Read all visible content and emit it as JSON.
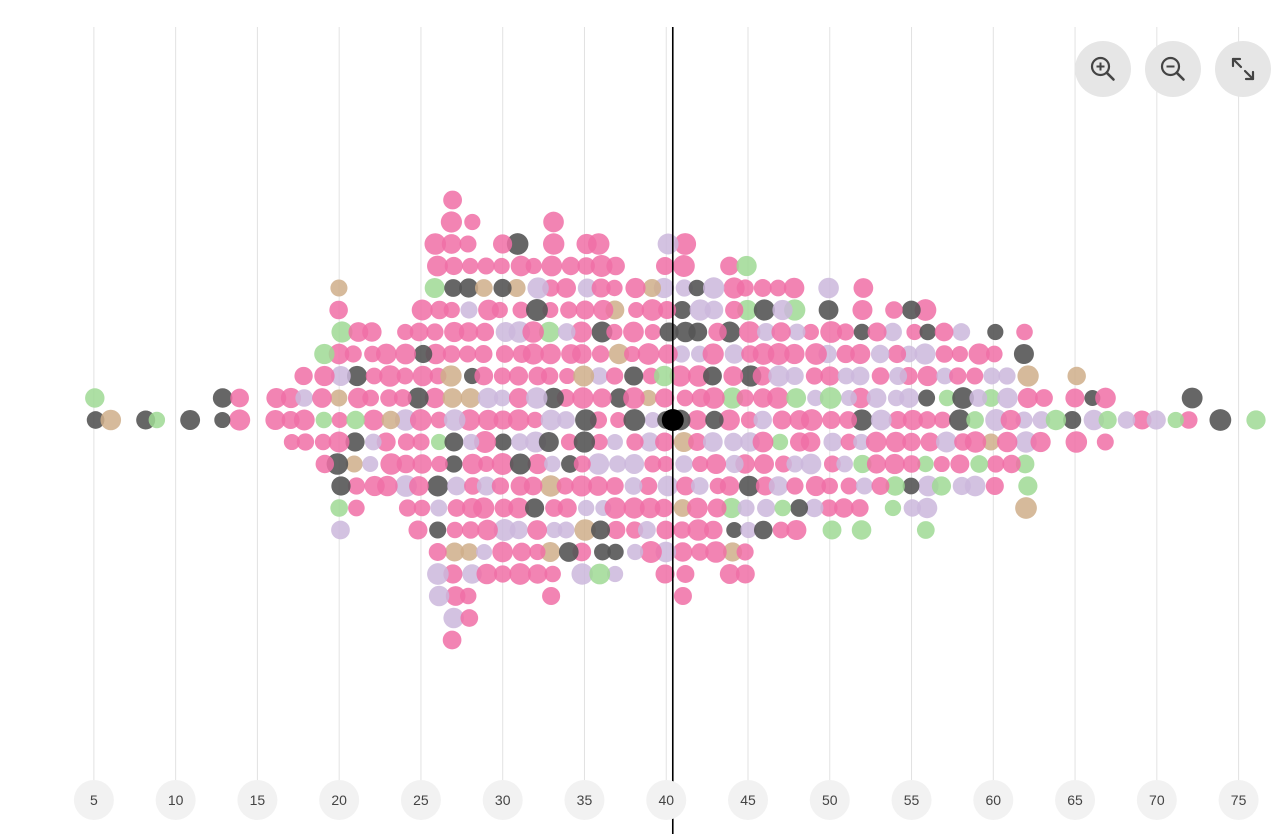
{
  "controls": {
    "zoom_in_icon": "zoom-in-icon",
    "zoom_out_icon": "zoom-out-icon",
    "fullscreen_icon": "expand-icon"
  },
  "colors": {
    "pink": "#f06fa6",
    "lavender": "#cbb7dc",
    "dark": "#555555",
    "green": "#9fd994",
    "tan": "#cfae8a",
    "highlight": "#000000",
    "gridline": "#e2e2e2",
    "tick_bg": "#f2f2f2"
  },
  "chart_data": {
    "type": "scatter",
    "title": "",
    "xlabel": "",
    "ylabel": "",
    "x_ticks": [
      5,
      10,
      15,
      20,
      25,
      30,
      35,
      40,
      45,
      50,
      55,
      60,
      65,
      70,
      75
    ],
    "xlim": [
      2.5,
      79
    ],
    "grid": true,
    "reference_line_x": 40.4,
    "highlighted_point": {
      "x": 40.4
    },
    "series": [
      {
        "color": "pink",
        "counts": [
          [
            14,
            2
          ],
          [
            16,
            2
          ],
          [
            17,
            3
          ],
          [
            18,
            3
          ],
          [
            19,
            4
          ],
          [
            20,
            4
          ],
          [
            21,
            5
          ],
          [
            22,
            6
          ],
          [
            23,
            6
          ],
          [
            24,
            7
          ],
          [
            25,
            9
          ],
          [
            26,
            10
          ],
          [
            27,
            12
          ],
          [
            28,
            12
          ],
          [
            29,
            11
          ],
          [
            30,
            11
          ],
          [
            31,
            10
          ],
          [
            32,
            10
          ],
          [
            33,
            10
          ],
          [
            34,
            9
          ],
          [
            35,
            9
          ],
          [
            36,
            9
          ],
          [
            37,
            8
          ],
          [
            38,
            8
          ],
          [
            39,
            8
          ],
          [
            40,
            9
          ],
          [
            41,
            9
          ],
          [
            42,
            8
          ],
          [
            43,
            8
          ],
          [
            44,
            7
          ],
          [
            45,
            8
          ],
          [
            46,
            7
          ],
          [
            47,
            7
          ],
          [
            48,
            6
          ],
          [
            49,
            6
          ],
          [
            50,
            6
          ],
          [
            51,
            6
          ],
          [
            52,
            5
          ],
          [
            53,
            5
          ],
          [
            54,
            5
          ],
          [
            55,
            5
          ],
          [
            56,
            4
          ],
          [
            57,
            4
          ],
          [
            58,
            4
          ],
          [
            59,
            3
          ],
          [
            60,
            3
          ],
          [
            61,
            3
          ],
          [
            62,
            2
          ],
          [
            63,
            2
          ],
          [
            65,
            2
          ],
          [
            67,
            2
          ],
          [
            69,
            1
          ],
          [
            72,
            1
          ]
        ]
      },
      {
        "color": "lavender",
        "counts": [
          [
            18,
            1
          ],
          [
            20,
            2
          ],
          [
            22,
            2
          ],
          [
            24,
            2
          ],
          [
            26,
            3
          ],
          [
            27,
            3
          ],
          [
            28,
            3
          ],
          [
            29,
            3
          ],
          [
            30,
            3
          ],
          [
            31,
            3
          ],
          [
            32,
            3
          ],
          [
            33,
            3
          ],
          [
            34,
            3
          ],
          [
            35,
            3
          ],
          [
            36,
            3
          ],
          [
            37,
            3
          ],
          [
            38,
            3
          ],
          [
            39,
            3
          ],
          [
            40,
            4
          ],
          [
            41,
            3
          ],
          [
            42,
            3
          ],
          [
            43,
            3
          ],
          [
            44,
            3
          ],
          [
            45,
            3
          ],
          [
            46,
            3
          ],
          [
            47,
            3
          ],
          [
            48,
            3
          ],
          [
            49,
            3
          ],
          [
            50,
            3
          ],
          [
            51,
            3
          ],
          [
            52,
            3
          ],
          [
            53,
            3
          ],
          [
            54,
            3
          ],
          [
            55,
            3
          ],
          [
            56,
            3
          ],
          [
            57,
            2
          ],
          [
            58,
            2
          ],
          [
            59,
            2
          ],
          [
            60,
            2
          ],
          [
            61,
            2
          ],
          [
            62,
            2
          ],
          [
            63,
            1
          ],
          [
            66,
            1
          ],
          [
            68,
            1
          ],
          [
            70,
            1
          ]
        ]
      },
      {
        "color": "dark",
        "counts": [
          [
            5,
            1
          ],
          [
            8,
            1
          ],
          [
            11,
            1
          ],
          [
            13,
            2
          ],
          [
            20,
            2
          ],
          [
            21,
            2
          ],
          [
            25,
            2
          ],
          [
            26,
            2
          ],
          [
            27,
            3
          ],
          [
            28,
            2
          ],
          [
            30,
            2
          ],
          [
            31,
            2
          ],
          [
            32,
            2
          ],
          [
            33,
            2
          ],
          [
            34,
            2
          ],
          [
            35,
            2
          ],
          [
            36,
            3
          ],
          [
            37,
            2
          ],
          [
            38,
            2
          ],
          [
            40,
            2
          ],
          [
            41,
            3
          ],
          [
            42,
            2
          ],
          [
            43,
            2
          ],
          [
            44,
            2
          ],
          [
            45,
            2
          ],
          [
            46,
            2
          ],
          [
            48,
            1
          ],
          [
            50,
            1
          ],
          [
            52,
            2
          ],
          [
            55,
            2
          ],
          [
            56,
            2
          ],
          [
            58,
            2
          ],
          [
            60,
            1
          ],
          [
            62,
            1
          ],
          [
            65,
            1
          ],
          [
            66,
            1
          ],
          [
            72,
            1
          ],
          [
            74,
            1
          ]
        ]
      },
      {
        "color": "green",
        "counts": [
          [
            5,
            1
          ],
          [
            9,
            1
          ],
          [
            19,
            2
          ],
          [
            20,
            2
          ],
          [
            21,
            1
          ],
          [
            26,
            2
          ],
          [
            33,
            1
          ],
          [
            36,
            1
          ],
          [
            40,
            1
          ],
          [
            44,
            2
          ],
          [
            45,
            2
          ],
          [
            47,
            2
          ],
          [
            48,
            2
          ],
          [
            50,
            2
          ],
          [
            52,
            2
          ],
          [
            54,
            2
          ],
          [
            56,
            2
          ],
          [
            57,
            2
          ],
          [
            59,
            2
          ],
          [
            60,
            1
          ],
          [
            62,
            2
          ],
          [
            64,
            1
          ],
          [
            67,
            1
          ],
          [
            71,
            1
          ],
          [
            76,
            1
          ]
        ]
      },
      {
        "color": "tan",
        "counts": [
          [
            6,
            1
          ],
          [
            20,
            2
          ],
          [
            21,
            1
          ],
          [
            23,
            1
          ],
          [
            27,
            3
          ],
          [
            28,
            2
          ],
          [
            29,
            1
          ],
          [
            31,
            1
          ],
          [
            33,
            2
          ],
          [
            35,
            2
          ],
          [
            37,
            2
          ],
          [
            39,
            2
          ],
          [
            41,
            2
          ],
          [
            44,
            1
          ],
          [
            60,
            1
          ],
          [
            62,
            2
          ],
          [
            65,
            1
          ]
        ]
      }
    ]
  }
}
